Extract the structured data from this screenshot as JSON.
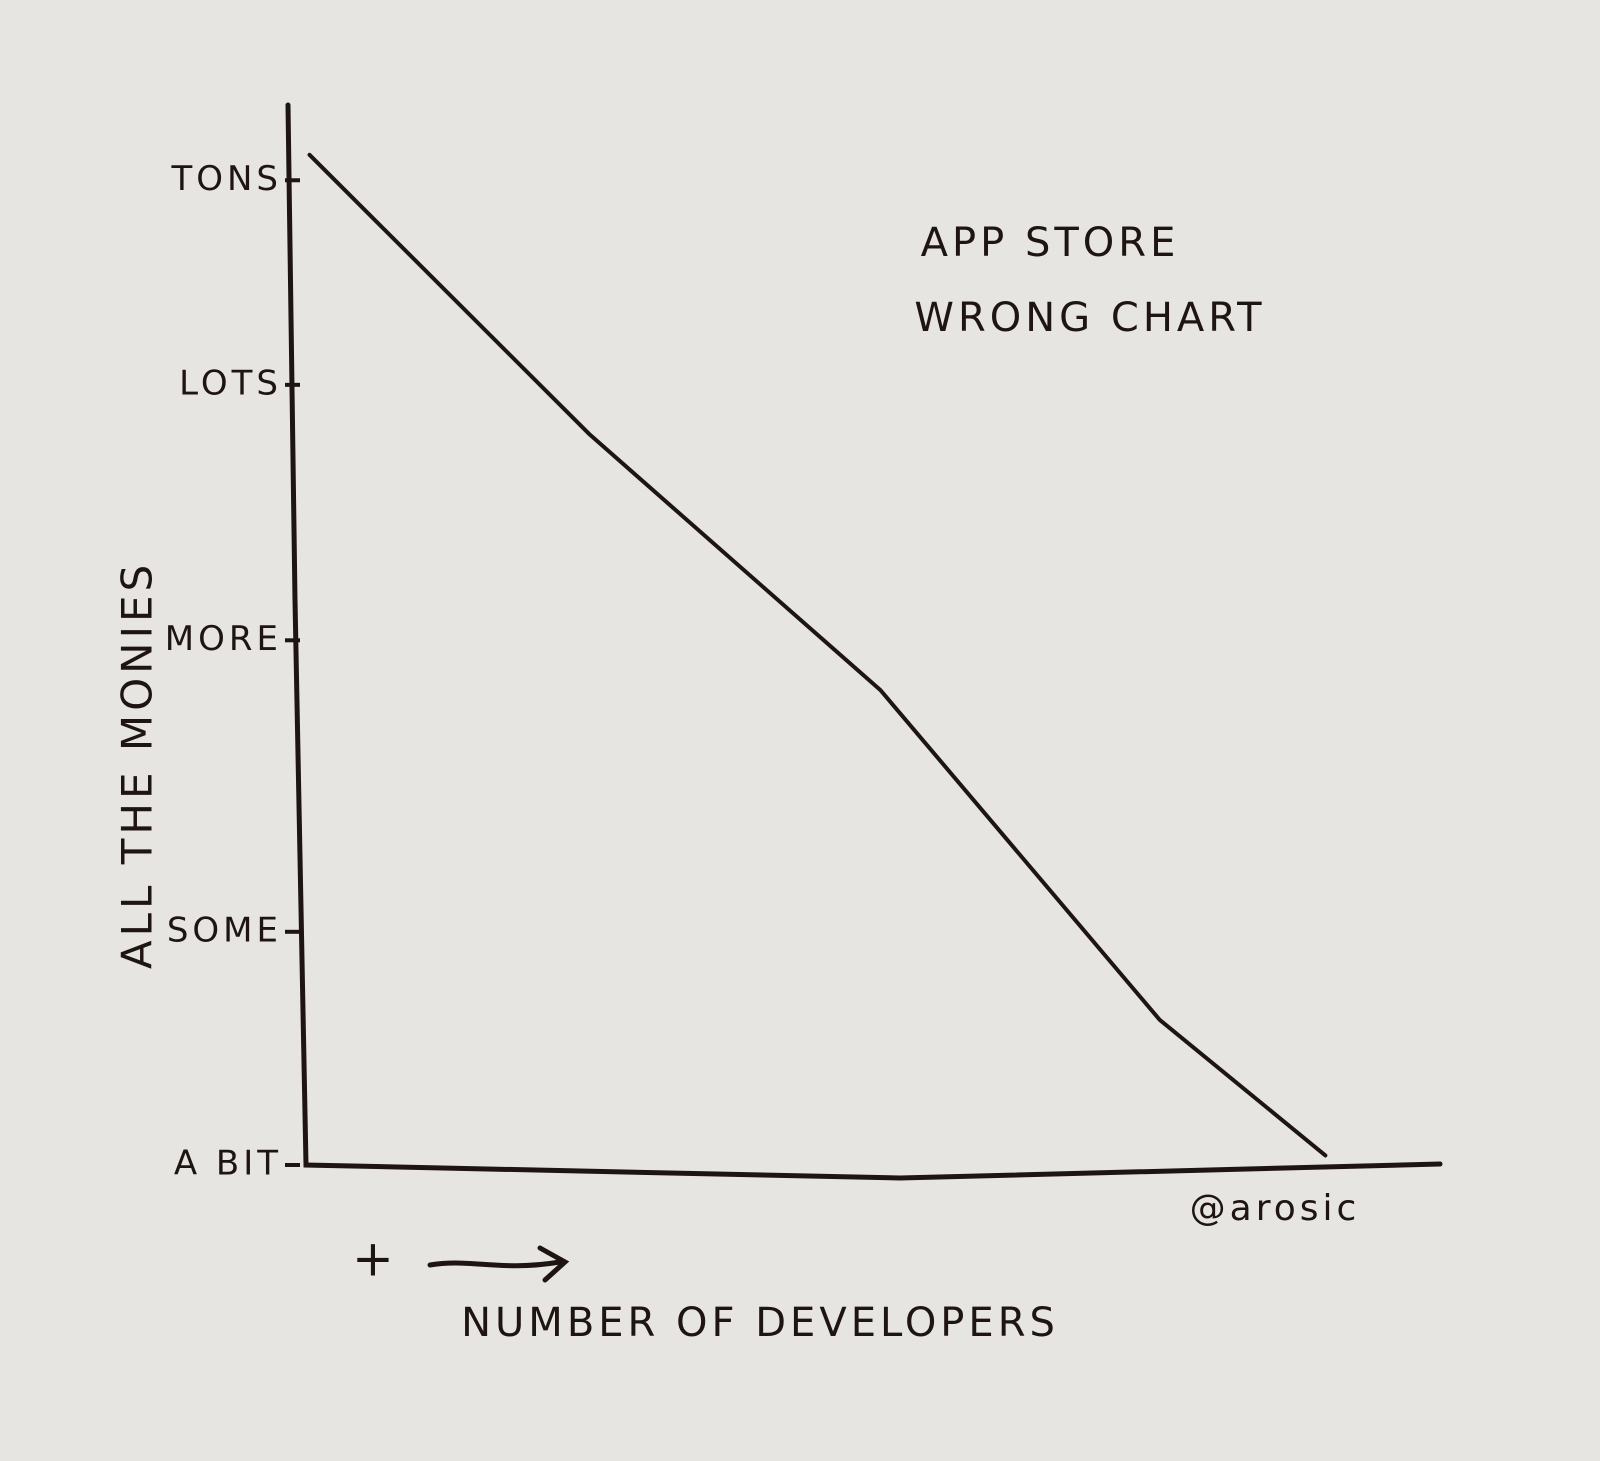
{
  "chart_data": {
    "type": "line",
    "title": [
      "APP STORE",
      "WRONG CHART"
    ],
    "x_label": "NUMBER OF DEVELOPERS",
    "y_label": "ALL THE MONIES",
    "annotation": "+",
    "credit": "@arosic",
    "x": [
      0.4,
      25.1,
      50.7,
      75.3,
      89.9
    ],
    "series": [
      {
        "color": "#1e1512",
        "values": [
          95.3,
          68.9,
          44.8,
          13.7,
          0.9
        ]
      }
    ],
    "xlim": [
      0,
      100
    ],
    "ylim": [
      0,
      100
    ],
    "yticks": [
      {
        "value": 0,
        "label": "A BIT"
      },
      {
        "value": 22,
        "label": "SOME"
      },
      {
        "value": 49.5,
        "label": "MORE"
      },
      {
        "value": 73.6,
        "label": "LOTS"
      },
      {
        "value": 92.9,
        "label": "TONS"
      }
    ],
    "grid": false
  }
}
